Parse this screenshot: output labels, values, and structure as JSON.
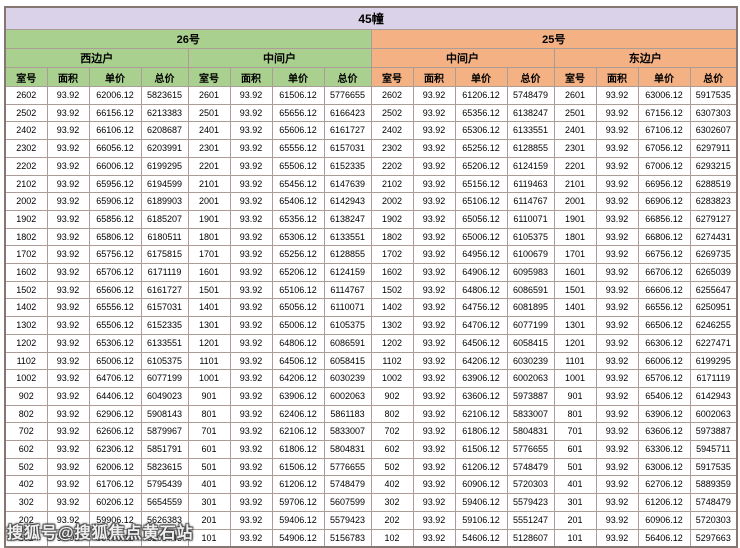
{
  "title": "45幢",
  "watermark": "搜狐号@搜狐焦点黄石站",
  "colors": {
    "title_bg": "#d9d2e8",
    "section_26_bg": "#a9d08e",
    "section_25_bg": "#f4b183",
    "border": "#ab9c96"
  },
  "sections": [
    {
      "label": "26号",
      "units": [
        "西边户",
        "中间户"
      ]
    },
    {
      "label": "25号",
      "units": [
        "中间户",
        "东边户"
      ]
    }
  ],
  "table": {
    "column_headers": [
      "室号",
      "面积",
      "单价",
      "总价"
    ],
    "rows": [
      [
        "2602",
        "93.92",
        "62006.12",
        "5823615",
        "2601",
        "93.92",
        "61506.12",
        "5776655",
        "2602",
        "93.92",
        "61206.12",
        "5748479",
        "2601",
        "93.92",
        "63006.12",
        "5917535"
      ],
      [
        "2502",
        "93.92",
        "66156.12",
        "6213383",
        "2501",
        "93.92",
        "65656.12",
        "6166423",
        "2502",
        "93.92",
        "65356.12",
        "6138247",
        "2501",
        "93.92",
        "67156.12",
        "6307303"
      ],
      [
        "2402",
        "93.92",
        "66106.12",
        "6208687",
        "2401",
        "93.92",
        "65606.12",
        "6161727",
        "2402",
        "93.92",
        "65306.12",
        "6133551",
        "2401",
        "93.92",
        "67106.12",
        "6302607"
      ],
      [
        "2302",
        "93.92",
        "66056.12",
        "6203991",
        "2301",
        "93.92",
        "65556.12",
        "6157031",
        "2302",
        "93.92",
        "65256.12",
        "6128855",
        "2301",
        "93.92",
        "67056.12",
        "6297911"
      ],
      [
        "2202",
        "93.92",
        "66006.12",
        "6199295",
        "2201",
        "93.92",
        "65506.12",
        "6152335",
        "2202",
        "93.92",
        "65206.12",
        "6124159",
        "2201",
        "93.92",
        "67006.12",
        "6293215"
      ],
      [
        "2102",
        "93.92",
        "65956.12",
        "6194599",
        "2101",
        "93.92",
        "65456.12",
        "6147639",
        "2102",
        "93.92",
        "65156.12",
        "6119463",
        "2101",
        "93.92",
        "66956.12",
        "6288519"
      ],
      [
        "2002",
        "93.92",
        "65906.12",
        "6189903",
        "2001",
        "93.92",
        "65406.12",
        "6142943",
        "2002",
        "93.92",
        "65106.12",
        "6114767",
        "2001",
        "93.92",
        "66906.12",
        "6283823"
      ],
      [
        "1902",
        "93.92",
        "65856.12",
        "6185207",
        "1901",
        "93.92",
        "65356.12",
        "6138247",
        "1902",
        "93.92",
        "65056.12",
        "6110071",
        "1901",
        "93.92",
        "66856.12",
        "6279127"
      ],
      [
        "1802",
        "93.92",
        "65806.12",
        "6180511",
        "1801",
        "93.92",
        "65306.12",
        "6133551",
        "1802",
        "93.92",
        "65006.12",
        "6105375",
        "1801",
        "93.92",
        "66806.12",
        "6274431"
      ],
      [
        "1702",
        "93.92",
        "65756.12",
        "6175815",
        "1701",
        "93.92",
        "65256.12",
        "6128855",
        "1702",
        "93.92",
        "64956.12",
        "6100679",
        "1701",
        "93.92",
        "66756.12",
        "6269735"
      ],
      [
        "1602",
        "93.92",
        "65706.12",
        "6171119",
        "1601",
        "93.92",
        "65206.12",
        "6124159",
        "1602",
        "93.92",
        "64906.12",
        "6095983",
        "1601",
        "93.92",
        "66706.12",
        "6265039"
      ],
      [
        "1502",
        "93.92",
        "65606.12",
        "6161727",
        "1501",
        "93.92",
        "65106.12",
        "6114767",
        "1502",
        "93.92",
        "64806.12",
        "6086591",
        "1501",
        "93.92",
        "66606.12",
        "6255647"
      ],
      [
        "1402",
        "93.92",
        "65556.12",
        "6157031",
        "1401",
        "93.92",
        "65056.12",
        "6110071",
        "1402",
        "93.92",
        "64756.12",
        "6081895",
        "1401",
        "93.92",
        "66556.12",
        "6250951"
      ],
      [
        "1302",
        "93.92",
        "65506.12",
        "6152335",
        "1301",
        "93.92",
        "65006.12",
        "6105375",
        "1302",
        "93.92",
        "64706.12",
        "6077199",
        "1301",
        "93.92",
        "66506.12",
        "6246255"
      ],
      [
        "1202",
        "93.92",
        "65306.12",
        "6133551",
        "1201",
        "93.92",
        "64806.12",
        "6086591",
        "1202",
        "93.92",
        "64506.12",
        "6058415",
        "1201",
        "93.92",
        "66306.12",
        "6227471"
      ],
      [
        "1102",
        "93.92",
        "65006.12",
        "6105375",
        "1101",
        "93.92",
        "64506.12",
        "6058415",
        "1102",
        "93.92",
        "64206.12",
        "6030239",
        "1101",
        "93.92",
        "66006.12",
        "6199295"
      ],
      [
        "1002",
        "93.92",
        "64706.12",
        "6077199",
        "1001",
        "93.92",
        "64206.12",
        "6030239",
        "1002",
        "93.92",
        "63906.12",
        "6002063",
        "1001",
        "93.92",
        "65706.12",
        "6171119"
      ],
      [
        "902",
        "93.92",
        "64406.12",
        "6049023",
        "901",
        "93.92",
        "63906.12",
        "6002063",
        "902",
        "93.92",
        "63606.12",
        "5973887",
        "901",
        "93.92",
        "65406.12",
        "6142943"
      ],
      [
        "802",
        "93.92",
        "62906.12",
        "5908143",
        "801",
        "93.92",
        "62406.12",
        "5861183",
        "802",
        "93.92",
        "62106.12",
        "5833007",
        "801",
        "93.92",
        "63906.12",
        "6002063"
      ],
      [
        "702",
        "93.92",
        "62606.12",
        "5879967",
        "701",
        "93.92",
        "62106.12",
        "5833007",
        "702",
        "93.92",
        "61806.12",
        "5804831",
        "701",
        "93.92",
        "63606.12",
        "5973887"
      ],
      [
        "602",
        "93.92",
        "62306.12",
        "5851791",
        "601",
        "93.92",
        "61806.12",
        "5804831",
        "602",
        "93.92",
        "61506.12",
        "5776655",
        "601",
        "93.92",
        "63306.12",
        "5945711"
      ],
      [
        "502",
        "93.92",
        "62006.12",
        "5823615",
        "501",
        "93.92",
        "61506.12",
        "5776655",
        "502",
        "93.92",
        "61206.12",
        "5748479",
        "501",
        "93.92",
        "63006.12",
        "5917535"
      ],
      [
        "402",
        "93.92",
        "61706.12",
        "5795439",
        "401",
        "93.92",
        "61206.12",
        "5748479",
        "402",
        "93.92",
        "60906.12",
        "5720303",
        "401",
        "93.92",
        "62706.12",
        "5889359"
      ],
      [
        "302",
        "93.92",
        "60206.12",
        "5654559",
        "301",
        "93.92",
        "59706.12",
        "5607599",
        "302",
        "93.92",
        "59406.12",
        "5579423",
        "301",
        "93.92",
        "61206.12",
        "5748479"
      ],
      [
        "202",
        "93.92",
        "59906.12",
        "5626383",
        "201",
        "93.92",
        "59406.12",
        "5579423",
        "202",
        "93.92",
        "59106.12",
        "5551247",
        "201",
        "93.92",
        "60906.12",
        "5720303"
      ],
      [
        "102",
        "93.92",
        "55406.12",
        "5203743",
        "101",
        "93.92",
        "54906.12",
        "5156783",
        "102",
        "93.92",
        "54606.12",
        "5128607",
        "101",
        "93.92",
        "56406.12",
        "5297663"
      ]
    ]
  }
}
